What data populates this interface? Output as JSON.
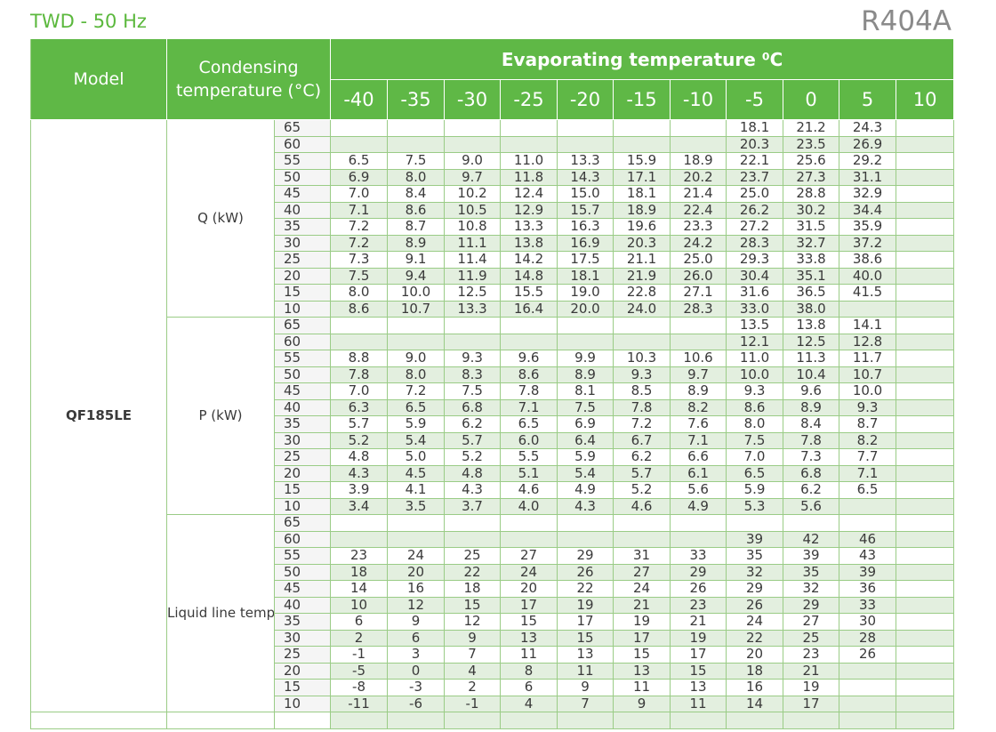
{
  "header": {
    "subtitle": "TWD - 50 Hz",
    "refrigerant": "R404A"
  },
  "table": {
    "col_model": "Model",
    "col_condensing": "Condensing temperature (°C)",
    "col_evaporating": "Evaporating temperature ⁰C",
    "evap_temps": [
      "-40",
      "-35",
      "-30",
      "-25",
      "-20",
      "-15",
      "-10",
      "-5",
      "0",
      "5",
      "10"
    ],
    "model": "QF185LE",
    "cond_temps": [
      "65",
      "60",
      "55",
      "50",
      "45",
      "40",
      "35",
      "30",
      "25",
      "20",
      "15",
      "10"
    ],
    "groups": [
      {
        "label": "Q (kW)",
        "rows": [
          [
            "",
            "",
            "",
            "",
            "",
            "",
            "",
            "18.1",
            "21.2",
            "24.3",
            ""
          ],
          [
            "",
            "",
            "",
            "",
            "",
            "",
            "",
            "20.3",
            "23.5",
            "26.9",
            ""
          ],
          [
            "6.5",
            "7.5",
            "9.0",
            "11.0",
            "13.3",
            "15.9",
            "18.9",
            "22.1",
            "25.6",
            "29.2",
            ""
          ],
          [
            "6.9",
            "8.0",
            "9.7",
            "11.8",
            "14.3",
            "17.1",
            "20.2",
            "23.7",
            "27.3",
            "31.1",
            ""
          ],
          [
            "7.0",
            "8.4",
            "10.2",
            "12.4",
            "15.0",
            "18.1",
            "21.4",
            "25.0",
            "28.8",
            "32.9",
            ""
          ],
          [
            "7.1",
            "8.6",
            "10.5",
            "12.9",
            "15.7",
            "18.9",
            "22.4",
            "26.2",
            "30.2",
            "34.4",
            ""
          ],
          [
            "7.2",
            "8.7",
            "10.8",
            "13.3",
            "16.3",
            "19.6",
            "23.3",
            "27.2",
            "31.5",
            "35.9",
            ""
          ],
          [
            "7.2",
            "8.9",
            "11.1",
            "13.8",
            "16.9",
            "20.3",
            "24.2",
            "28.3",
            "32.7",
            "37.2",
            ""
          ],
          [
            "7.3",
            "9.1",
            "11.4",
            "14.2",
            "17.5",
            "21.1",
            "25.0",
            "29.3",
            "33.8",
            "38.6",
            ""
          ],
          [
            "7.5",
            "9.4",
            "11.9",
            "14.8",
            "18.1",
            "21.9",
            "26.0",
            "30.4",
            "35.1",
            "40.0",
            ""
          ],
          [
            "8.0",
            "10.0",
            "12.5",
            "15.5",
            "19.0",
            "22.8",
            "27.1",
            "31.6",
            "36.5",
            "41.5",
            ""
          ],
          [
            "8.6",
            "10.7",
            "13.3",
            "16.4",
            "20.0",
            "24.0",
            "28.3",
            "33.0",
            "38.0",
            "",
            ""
          ]
        ]
      },
      {
        "label": "P (kW)",
        "rows": [
          [
            "",
            "",
            "",
            "",
            "",
            "",
            "",
            "13.5",
            "13.8",
            "14.1",
            ""
          ],
          [
            "",
            "",
            "",
            "",
            "",
            "",
            "",
            "12.1",
            "12.5",
            "12.8",
            ""
          ],
          [
            "8.8",
            "9.0",
            "9.3",
            "9.6",
            "9.9",
            "10.3",
            "10.6",
            "11.0",
            "11.3",
            "11.7",
            ""
          ],
          [
            "7.8",
            "8.0",
            "8.3",
            "8.6",
            "8.9",
            "9.3",
            "9.7",
            "10.0",
            "10.4",
            "10.7",
            ""
          ],
          [
            "7.0",
            "7.2",
            "7.5",
            "7.8",
            "8.1",
            "8.5",
            "8.9",
            "9.3",
            "9.6",
            "10.0",
            ""
          ],
          [
            "6.3",
            "6.5",
            "6.8",
            "7.1",
            "7.5",
            "7.8",
            "8.2",
            "8.6",
            "8.9",
            "9.3",
            ""
          ],
          [
            "5.7",
            "5.9",
            "6.2",
            "6.5",
            "6.9",
            "7.2",
            "7.6",
            "8.0",
            "8.4",
            "8.7",
            ""
          ],
          [
            "5.2",
            "5.4",
            "5.7",
            "6.0",
            "6.4",
            "6.7",
            "7.1",
            "7.5",
            "7.8",
            "8.2",
            ""
          ],
          [
            "4.8",
            "5.0",
            "5.2",
            "5.5",
            "5.9",
            "6.2",
            "6.6",
            "7.0",
            "7.3",
            "7.7",
            ""
          ],
          [
            "4.3",
            "4.5",
            "4.8",
            "5.1",
            "5.4",
            "5.7",
            "6.1",
            "6.5",
            "6.8",
            "7.1",
            ""
          ],
          [
            "3.9",
            "4.1",
            "4.3",
            "4.6",
            "4.9",
            "5.2",
            "5.6",
            "5.9",
            "6.2",
            "6.5",
            ""
          ],
          [
            "3.4",
            "3.5",
            "3.7",
            "4.0",
            "4.3",
            "4.6",
            "4.9",
            "5.3",
            "5.6",
            "",
            ""
          ]
        ]
      },
      {
        "label": "Liquid line temperature (°C)",
        "rows": [
          [
            "",
            "",
            "",
            "",
            "",
            "",
            "",
            "",
            "",
            "",
            ""
          ],
          [
            "",
            "",
            "",
            "",
            "",
            "",
            "",
            "39",
            "42",
            "46",
            ""
          ],
          [
            "23",
            "24",
            "25",
            "27",
            "29",
            "31",
            "33",
            "35",
            "39",
            "43",
            ""
          ],
          [
            "18",
            "20",
            "22",
            "24",
            "26",
            "27",
            "29",
            "32",
            "35",
            "39",
            ""
          ],
          [
            "14",
            "16",
            "18",
            "20",
            "22",
            "24",
            "26",
            "29",
            "32",
            "36",
            ""
          ],
          [
            "10",
            "12",
            "15",
            "17",
            "19",
            "21",
            "23",
            "26",
            "29",
            "33",
            ""
          ],
          [
            "6",
            "9",
            "12",
            "15",
            "17",
            "19",
            "21",
            "24",
            "27",
            "30",
            ""
          ],
          [
            "2",
            "6",
            "9",
            "13",
            "15",
            "17",
            "19",
            "22",
            "25",
            "28",
            ""
          ],
          [
            "-1",
            "3",
            "7",
            "11",
            "13",
            "15",
            "17",
            "20",
            "23",
            "26",
            ""
          ],
          [
            "-5",
            "0",
            "4",
            "8",
            "11",
            "13",
            "15",
            "18",
            "21",
            "",
            ""
          ],
          [
            "-8",
            "-3",
            "2",
            "6",
            "9",
            "11",
            "13",
            "16",
            "19",
            "",
            ""
          ],
          [
            "-11",
            "-6",
            "-1",
            "4",
            "7",
            "9",
            "11",
            "14",
            "17",
            "",
            ""
          ]
        ]
      }
    ]
  }
}
